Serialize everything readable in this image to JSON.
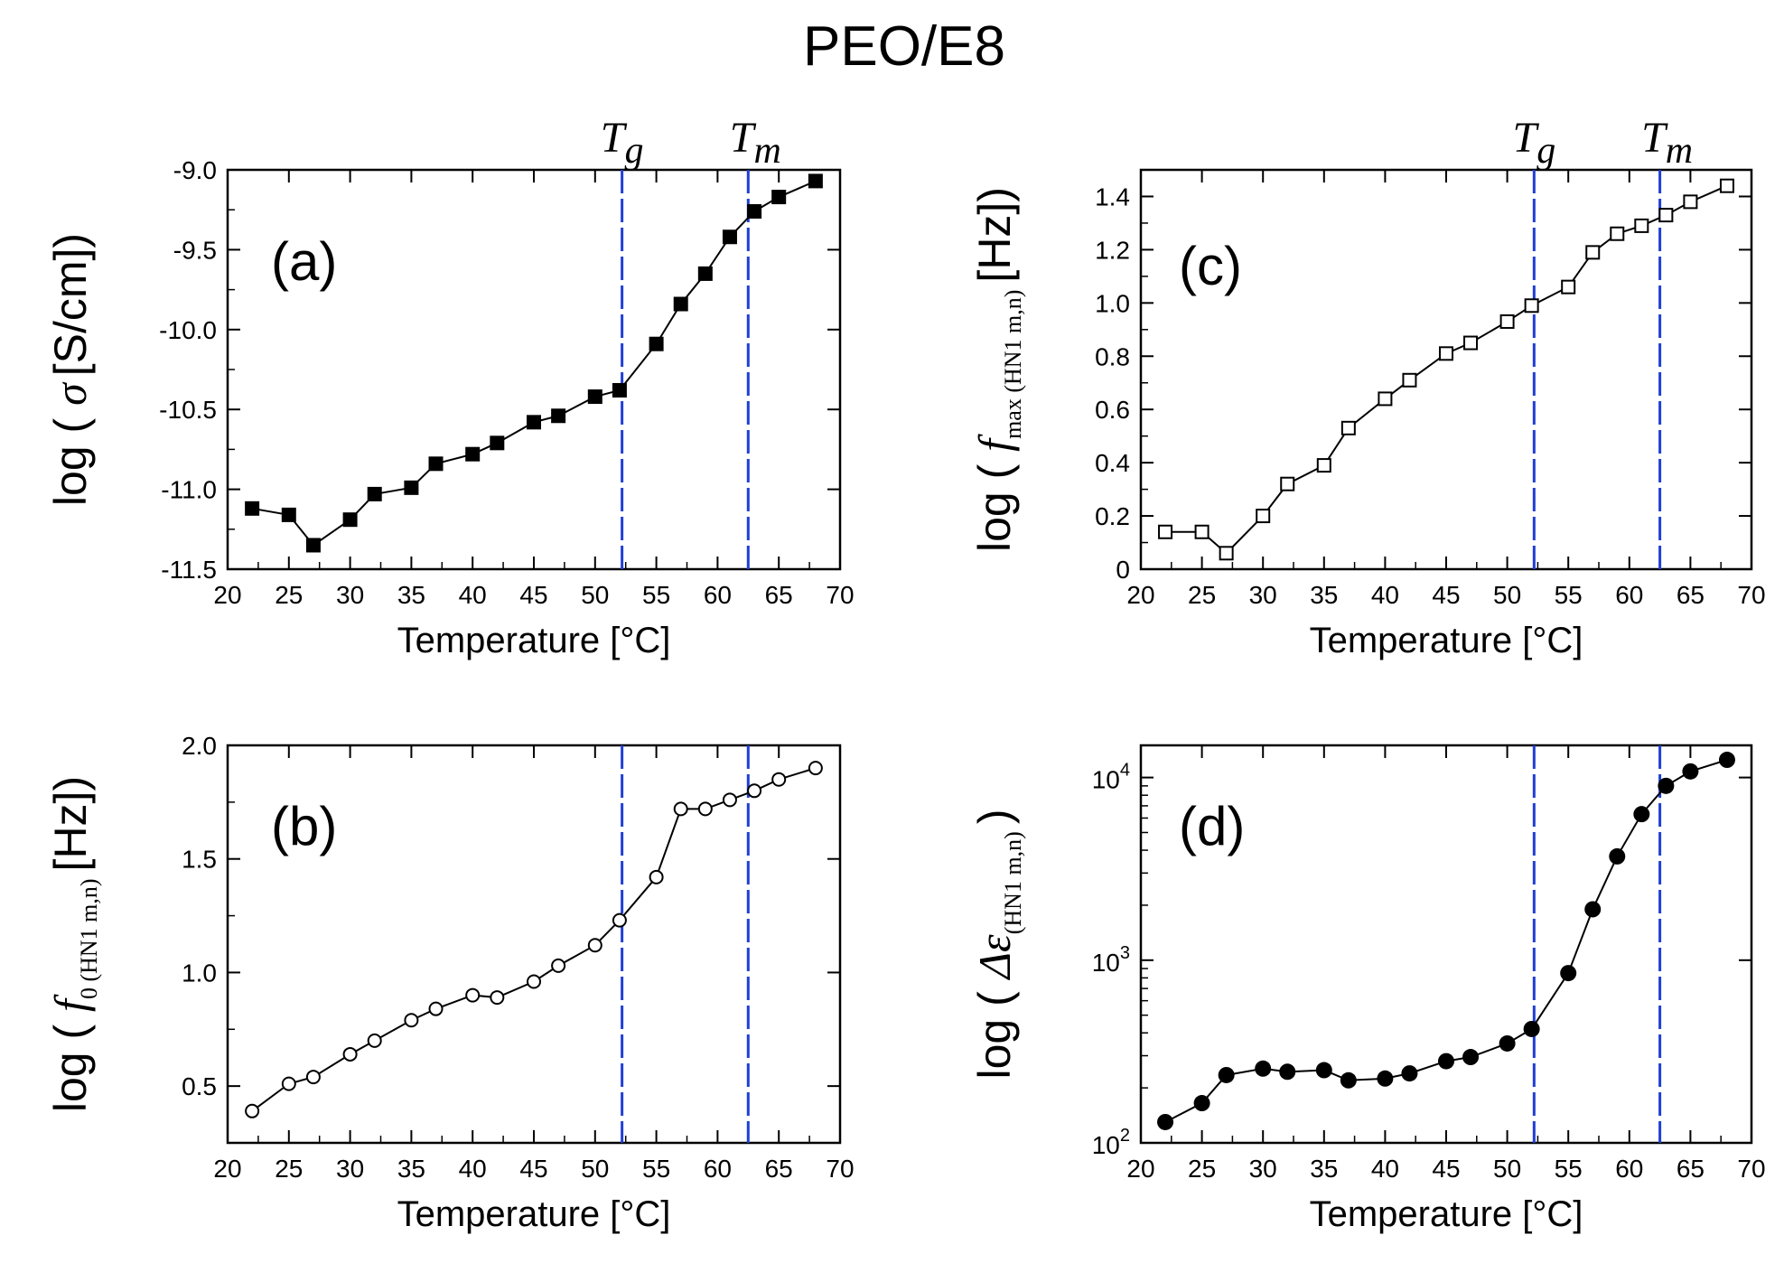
{
  "figure_title": "PEO/E8",
  "x_label": "Temperature [°C]",
  "tg_label": "T",
  "tg_sub": "g",
  "tm_label": "T",
  "tm_sub": "m",
  "tg_value": 52.2,
  "tm_value": 62.5,
  "colors": {
    "line": "#000000",
    "transition": "#1f3fd6"
  },
  "chart_data": [
    {
      "id": "a",
      "type": "line",
      "panel_label": "(a)",
      "marker": "filled-square",
      "ylabel_main": "log (",
      "ylabel_symbol": "σ",
      "ylabel_unit": "[S/cm])",
      "xlim": [
        20,
        70
      ],
      "ylim": [
        -11.5,
        -9.0
      ],
      "xticks": [
        "20",
        "25",
        "30",
        "35",
        "40",
        "45",
        "50",
        "55",
        "60",
        "65",
        "70"
      ],
      "yticks": [
        "-11.5",
        "-11.0",
        "-10.5",
        "-10.0",
        "-9.5",
        "-9.0"
      ],
      "x": [
        22,
        25,
        27,
        30,
        32,
        35,
        37,
        40,
        42,
        45,
        47,
        50,
        52,
        55,
        57,
        59,
        61,
        63,
        65,
        68
      ],
      "y": [
        -11.12,
        -11.16,
        -11.35,
        -11.19,
        -11.03,
        -10.99,
        -10.84,
        -10.78,
        -10.71,
        -10.58,
        -10.54,
        -10.42,
        -10.38,
        -10.09,
        -9.84,
        -9.65,
        -9.42,
        -9.26,
        -9.17,
        -9.07
      ]
    },
    {
      "id": "b",
      "type": "line",
      "panel_label": "(b)",
      "marker": "open-circle",
      "ylabel_main": "log (",
      "ylabel_italic": "f",
      "ylabel_sub": "0 (HN1 m,n)",
      "ylabel_unit": "[Hz])",
      "xlim": [
        20,
        70
      ],
      "ylim": [
        0.25,
        2.0
      ],
      "xticks": [
        "20",
        "25",
        "30",
        "35",
        "40",
        "45",
        "50",
        "55",
        "60",
        "65",
        "70"
      ],
      "yticks": [
        "0.5",
        "1.0",
        "1.5",
        "2.0"
      ],
      "x": [
        22,
        25,
        27,
        30,
        32,
        35,
        37,
        40,
        42,
        45,
        47,
        50,
        52,
        55,
        57,
        59,
        61,
        63,
        65,
        68
      ],
      "y": [
        0.39,
        0.51,
        0.54,
        0.64,
        0.7,
        0.79,
        0.84,
        0.9,
        0.89,
        0.96,
        1.03,
        1.12,
        1.23,
        1.42,
        1.72,
        1.72,
        1.76,
        1.8,
        1.85,
        1.9
      ]
    },
    {
      "id": "c",
      "type": "line",
      "panel_label": "(c)",
      "marker": "open-square",
      "ylabel_main": "log (",
      "ylabel_italic": "f",
      "ylabel_sub": "max (HN1 m,n)",
      "ylabel_unit": "[Hz])",
      "xlim": [
        20,
        70
      ],
      "ylim": [
        0,
        1.5
      ],
      "xticks": [
        "20",
        "25",
        "30",
        "35",
        "40",
        "45",
        "50",
        "55",
        "60",
        "65",
        "70"
      ],
      "yticks": [
        "0",
        "0.2",
        "0.4",
        "0.6",
        "0.8",
        "1.0",
        "1.2",
        "1.4"
      ],
      "x": [
        22,
        25,
        27,
        30,
        32,
        35,
        37,
        40,
        42,
        45,
        47,
        50,
        52,
        55,
        57,
        59,
        61,
        63,
        65,
        68
      ],
      "y": [
        0.14,
        0.14,
        0.06,
        0.2,
        0.32,
        0.39,
        0.53,
        0.64,
        0.71,
        0.81,
        0.85,
        0.93,
        0.99,
        1.06,
        1.19,
        1.26,
        1.29,
        1.33,
        1.38,
        1.44
      ]
    },
    {
      "id": "d",
      "type": "line",
      "panel_label": "(d)",
      "marker": "filled-circle",
      "yscale": "log",
      "ylabel_main": "log (",
      "ylabel_symbol": "Δε",
      "ylabel_sub": "(HN1 m,n)",
      "ylabel_unit": ")",
      "xlim": [
        20,
        70
      ],
      "ylim": [
        100,
        15000
      ],
      "xticks": [
        "20",
        "25",
        "30",
        "35",
        "40",
        "45",
        "50",
        "55",
        "60",
        "65",
        "70"
      ],
      "yticks": [
        {
          "base": "10",
          "exp": "2"
        },
        {
          "base": "10",
          "exp": "3"
        },
        {
          "base": "10",
          "exp": "4"
        }
      ],
      "x": [
        22,
        25,
        27,
        30,
        32,
        35,
        37,
        40,
        42,
        45,
        47,
        50,
        52,
        55,
        57,
        59,
        61,
        63,
        65,
        68
      ],
      "y": [
        130,
        165,
        235,
        255,
        245,
        250,
        220,
        225,
        240,
        280,
        295,
        350,
        420,
        850,
        1900,
        3700,
        6300,
        9000,
        10800,
        12500
      ]
    }
  ]
}
